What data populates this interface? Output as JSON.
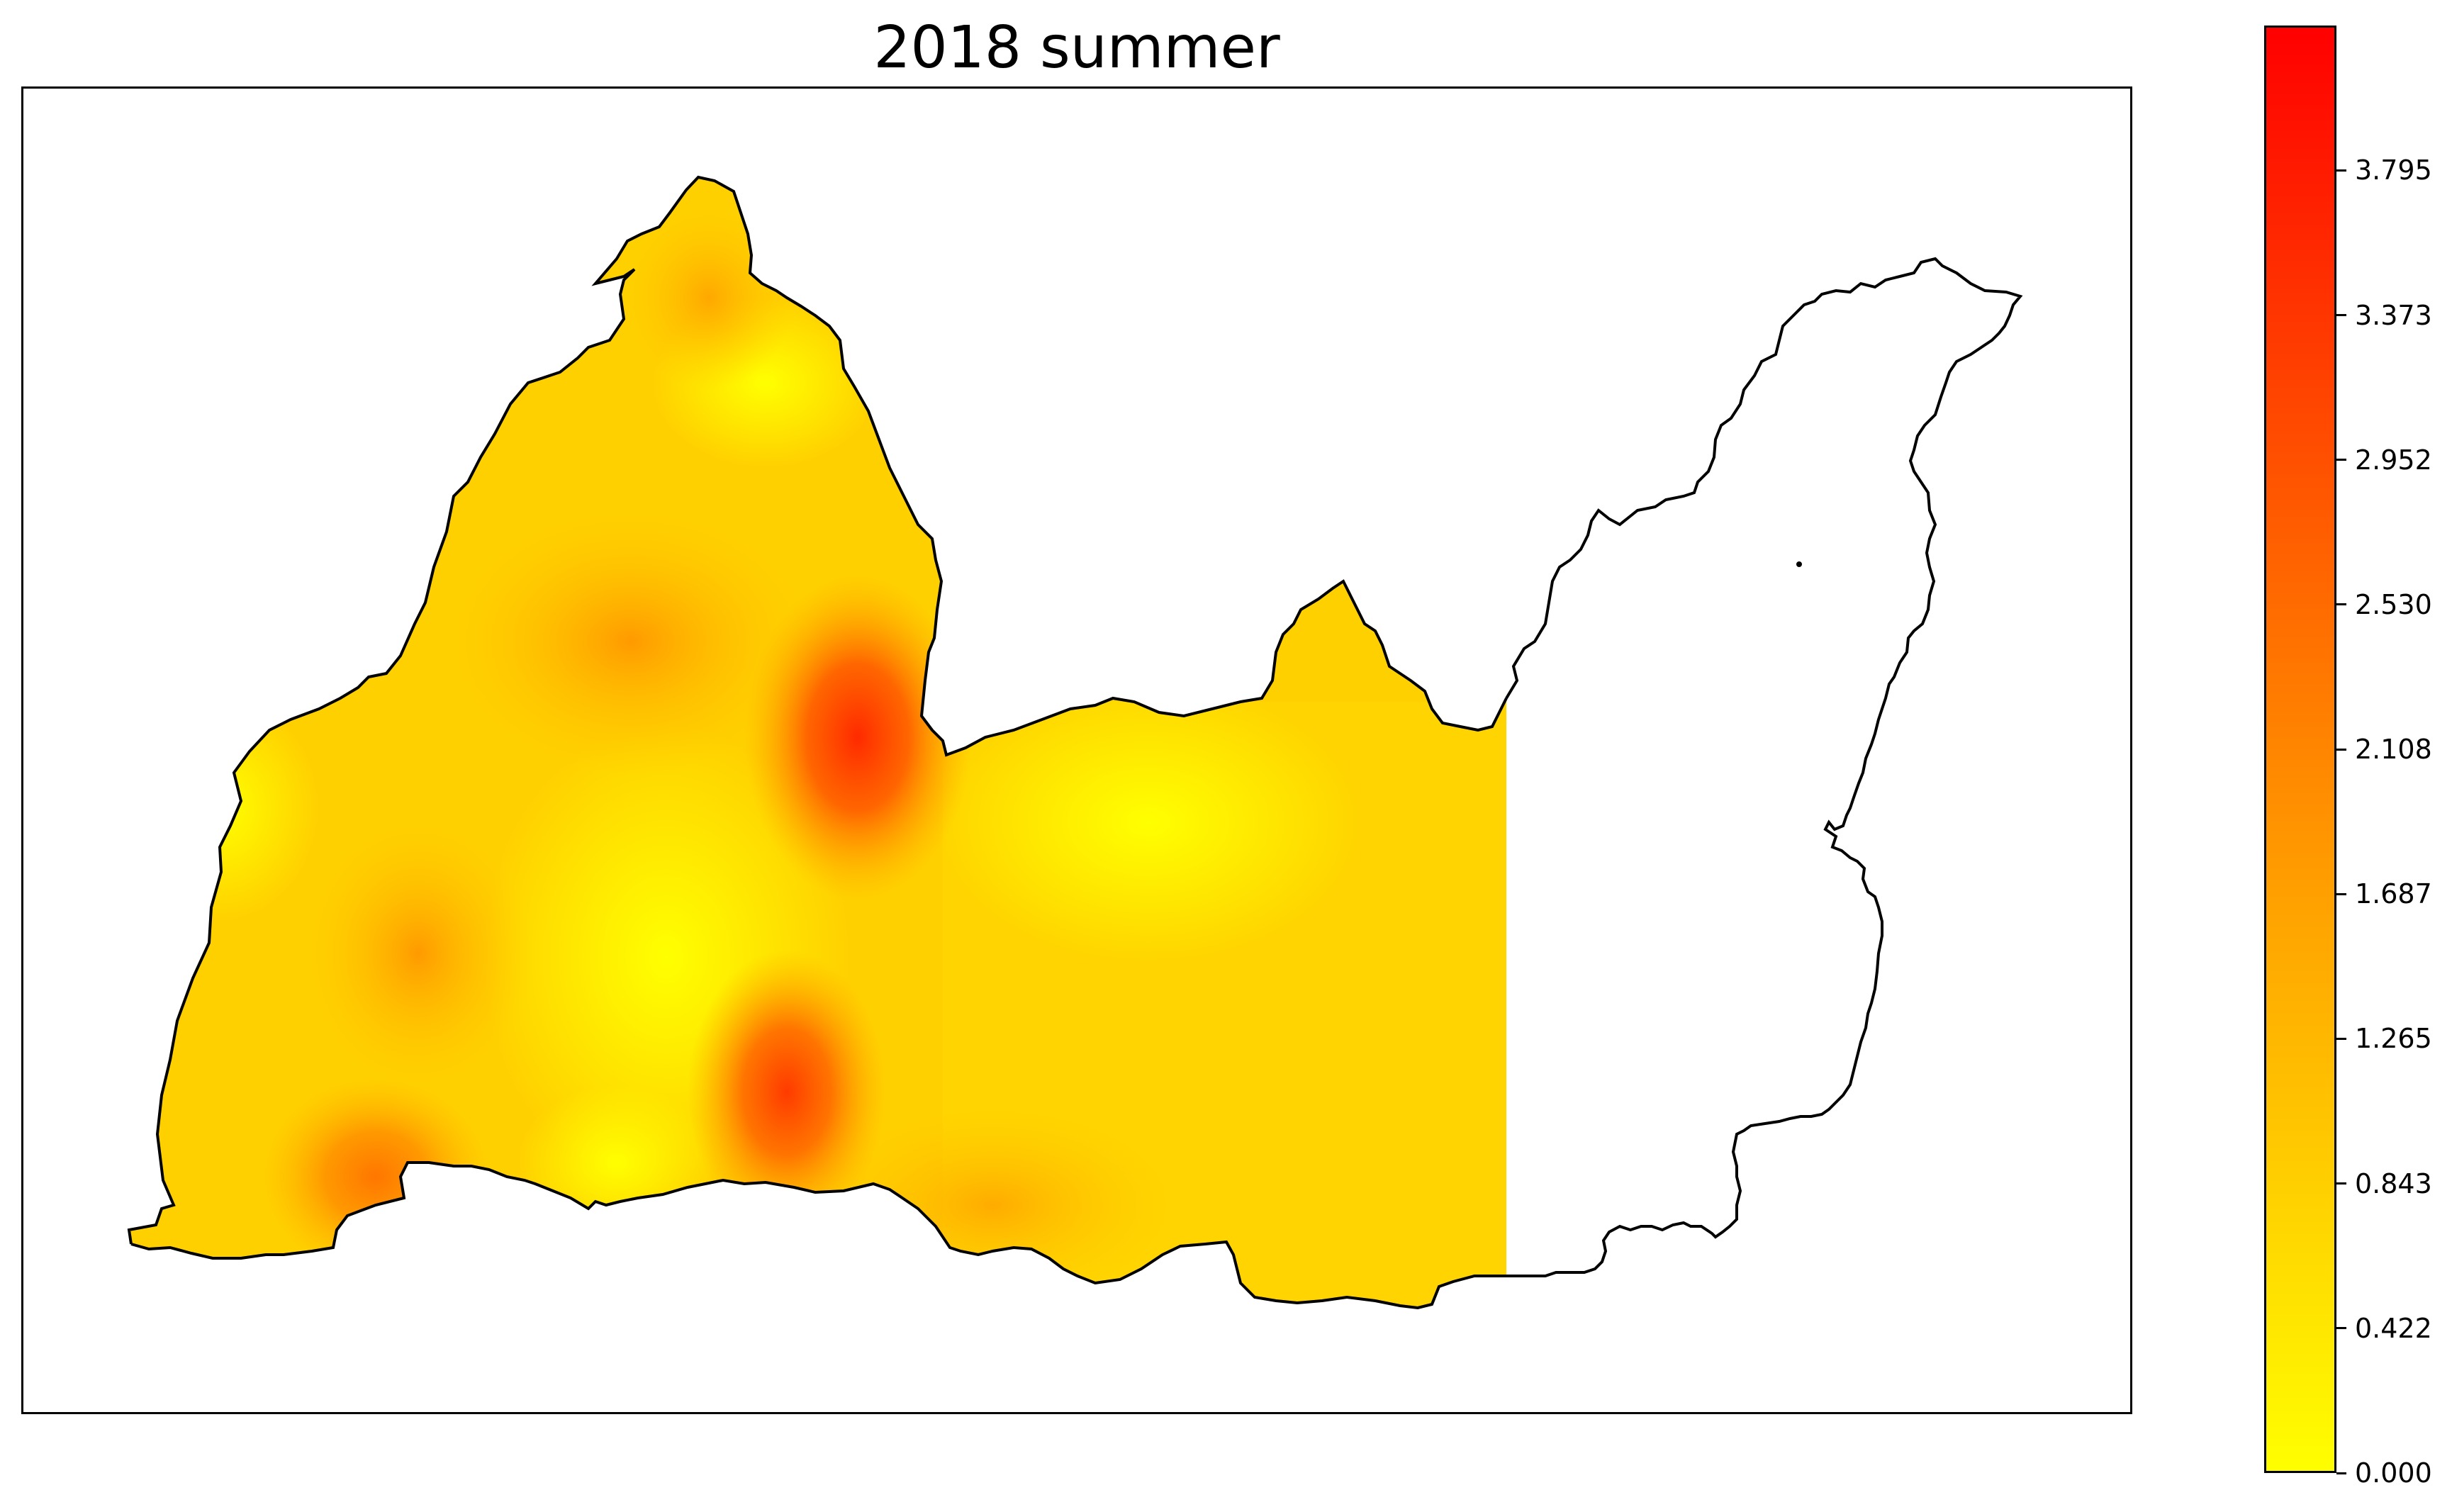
{
  "title": "2018 summer",
  "colorbar": {
    "min": 0.0,
    "max": 4.217,
    "colors": [
      "#ffff00",
      "#ffa500",
      "#ff0000"
    ],
    "ticks": [
      {
        "value": 0.0,
        "label": "0.000"
      },
      {
        "value": 0.422,
        "label": "0.422"
      },
      {
        "value": 0.843,
        "label": "0.843"
      },
      {
        "value": 1.265,
        "label": "1.265"
      },
      {
        "value": 1.687,
        "label": "1.687"
      },
      {
        "value": 2.108,
        "label": "2.108"
      },
      {
        "value": 2.53,
        "label": "2.530"
      },
      {
        "value": 2.952,
        "label": "2.952"
      },
      {
        "value": 3.373,
        "label": "3.373"
      },
      {
        "value": 3.795,
        "label": "3.795"
      }
    ]
  },
  "hotspots": [
    {
      "name": "central-north",
      "value": 3.2
    },
    {
      "name": "south-central",
      "value": 2.6
    },
    {
      "name": "north-west-center",
      "value": 1.0
    },
    {
      "name": "west",
      "value": 1.1
    },
    {
      "name": "south-west",
      "value": 1.6
    },
    {
      "name": "north-tip",
      "value": 0.75
    }
  ]
}
